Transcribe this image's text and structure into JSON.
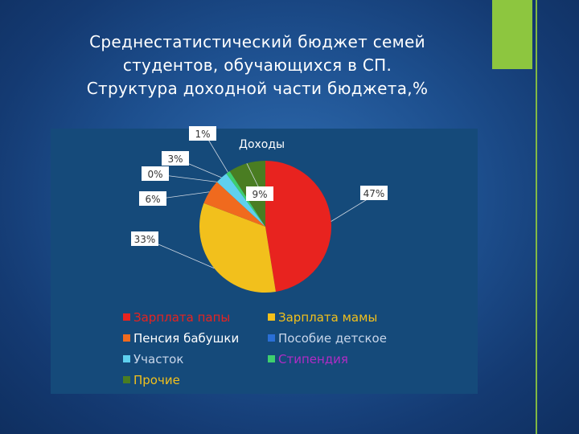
{
  "slide": {
    "title_lines": [
      "Среднестатистический бюджет семей",
      "студентов, обучающихся в СП.",
      "Структура доходной части бюджета,%"
    ]
  },
  "colors": {
    "accent_green": "#8dc63f"
  },
  "chart_data": {
    "type": "pie",
    "title": "Доходы",
    "legend_position": "bottom",
    "slices": [
      {
        "name": "Зарплата папы",
        "value": 47,
        "label": "47%",
        "color": "#e8231f"
      },
      {
        "name": "Зарплата мамы",
        "value": 33,
        "label": "33%",
        "color": "#f2c01c"
      },
      {
        "name": "Пенсия бабушки",
        "value": 6,
        "label": "6%",
        "color": "#f06a1e"
      },
      {
        "name": "Пособие детское",
        "value": 0,
        "label": "0%",
        "color": "#2a6fd6"
      },
      {
        "name": "Участок",
        "value": 3,
        "label": "3%",
        "color": "#5fd0ee"
      },
      {
        "name": "Стипендия",
        "value": 1,
        "label": "1%",
        "color": "#3ecf6e"
      },
      {
        "name": "Прочие",
        "value": 9,
        "label": "9%",
        "color": "#4a7d22"
      }
    ]
  }
}
